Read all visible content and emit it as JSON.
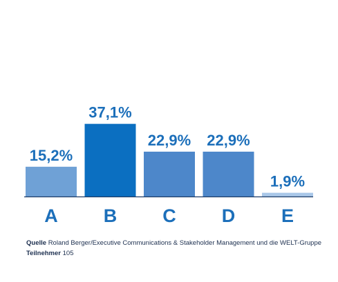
{
  "chart_data": {
    "type": "bar",
    "categories": [
      "A",
      "B",
      "C",
      "D",
      "E"
    ],
    "values": [
      15.2,
      37.1,
      22.9,
      22.9,
      1.9
    ],
    "value_labels": [
      "15,2%",
      "37,1%",
      "22,9%",
      "22,9%",
      "1,9%"
    ],
    "bar_colors": [
      "#6fa1d6",
      "#0b6fc1",
      "#4d87ca",
      "#4d87ca",
      "#a9c7e8"
    ],
    "label_color": "#1c6fba",
    "axis_color": "#1b3a66",
    "title": "",
    "xlabel": "",
    "ylabel": "",
    "grid": false,
    "legend": "none"
  },
  "footer": {
    "source_key": "Quelle",
    "source_text": "Roland Berger/Executive Communications & Stakeholder Management und die WELT-Gruppe",
    "participants_key": "Teilnehmer",
    "participants_value": "105"
  }
}
